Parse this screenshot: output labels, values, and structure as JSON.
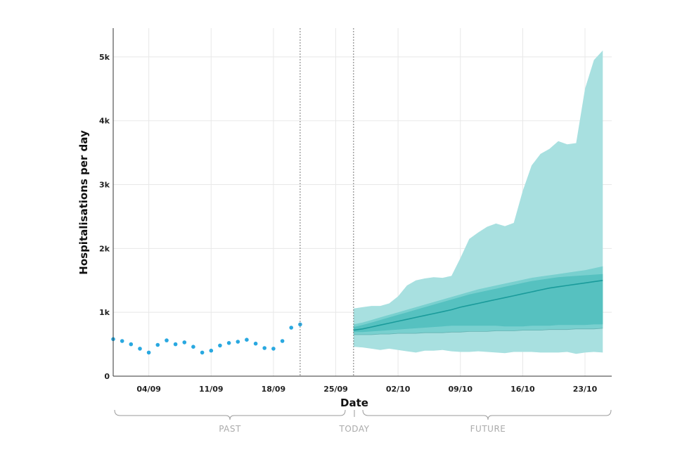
{
  "chart_data": {
    "type": "area",
    "ylabel": "Hospitalisations per day",
    "xlabel": "Date",
    "ylim": [
      0,
      5450
    ],
    "y_ticks": [
      0,
      1000,
      2000,
      3000,
      4000,
      5000
    ],
    "y_tick_labels": [
      "0",
      "1k",
      "2k",
      "3k",
      "4k",
      "5k"
    ],
    "x_ticks": [
      3,
      10,
      17,
      24,
      31,
      38,
      45,
      52
    ],
    "x_tick_labels": [
      "04/09",
      "11/09",
      "18/09",
      "25/09",
      "02/10",
      "09/10",
      "16/10",
      "23/10"
    ],
    "xlim": [
      -1,
      55
    ],
    "grid": true,
    "colors": {
      "observed": "#29a8e0",
      "band_outer": "#a8e0e0",
      "band_middle": "#79d0cf",
      "band_inner": "#56c1c0",
      "median": "#1a9b9b"
    },
    "observed": {
      "x": [
        -1,
        0,
        1,
        2,
        3,
        4,
        5,
        6,
        7,
        8,
        9,
        10,
        11,
        12,
        13,
        14,
        15,
        16,
        17,
        18,
        19,
        20
      ],
      "y": [
        580,
        550,
        500,
        430,
        370,
        490,
        560,
        500,
        530,
        460,
        370,
        400,
        480,
        520,
        540,
        570,
        510,
        440,
        430,
        550,
        760,
        810
      ]
    },
    "forecast": {
      "x": [
        26,
        27,
        28,
        29,
        30,
        31,
        32,
        33,
        34,
        35,
        36,
        37,
        38,
        39,
        40,
        41,
        42,
        43,
        44,
        45,
        46,
        47,
        48,
        49,
        50,
        51,
        52,
        53,
        54
      ],
      "median": [
        720,
        740,
        770,
        800,
        830,
        860,
        890,
        920,
        950,
        980,
        1010,
        1040,
        1080,
        1110,
        1140,
        1170,
        1200,
        1230,
        1260,
        1290,
        1320,
        1350,
        1380,
        1400,
        1420,
        1440,
        1460,
        1480,
        1500
      ],
      "inner_low": [
        690,
        690,
        700,
        710,
        720,
        730,
        740,
        750,
        760,
        770,
        780,
        790,
        790,
        790,
        790,
        790,
        790,
        780,
        780,
        780,
        790,
        790,
        790,
        800,
        800,
        800,
        800,
        810,
        810
      ],
      "inner_high": [
        770,
        800,
        840,
        880,
        920,
        960,
        1000,
        1040,
        1080,
        1120,
        1160,
        1200,
        1240,
        1280,
        1310,
        1340,
        1370,
        1400,
        1430,
        1460,
        1490,
        1510,
        1530,
        1550,
        1560,
        1570,
        1580,
        1590,
        1600
      ],
      "middle_low": [
        650,
        650,
        650,
        660,
        660,
        670,
        670,
        670,
        680,
        680,
        680,
        690,
        690,
        700,
        700,
        700,
        710,
        710,
        710,
        720,
        720,
        720,
        730,
        730,
        730,
        740,
        740,
        740,
        750
      ],
      "middle_high": [
        810,
        840,
        880,
        920,
        960,
        1000,
        1040,
        1080,
        1120,
        1160,
        1200,
        1240,
        1280,
        1320,
        1360,
        1390,
        1420,
        1450,
        1480,
        1510,
        1540,
        1560,
        1580,
        1600,
        1620,
        1640,
        1660,
        1690,
        1720
      ],
      "outer_low": [
        460,
        450,
        430,
        410,
        430,
        410,
        390,
        370,
        400,
        400,
        410,
        390,
        380,
        380,
        390,
        380,
        370,
        360,
        380,
        380,
        380,
        370,
        370,
        370,
        380,
        350,
        370,
        380,
        370
      ],
      "outer_high": [
        1060,
        1080,
        1100,
        1100,
        1140,
        1250,
        1420,
        1500,
        1530,
        1550,
        1540,
        1570,
        1850,
        2150,
        2250,
        2340,
        2390,
        2350,
        2400,
        2900,
        3300,
        3480,
        3560,
        3680,
        3630,
        3650,
        4500,
        4950,
        5100
      ]
    },
    "period_labels": [
      "PAST",
      "TODAY",
      "FUTURE"
    ]
  }
}
